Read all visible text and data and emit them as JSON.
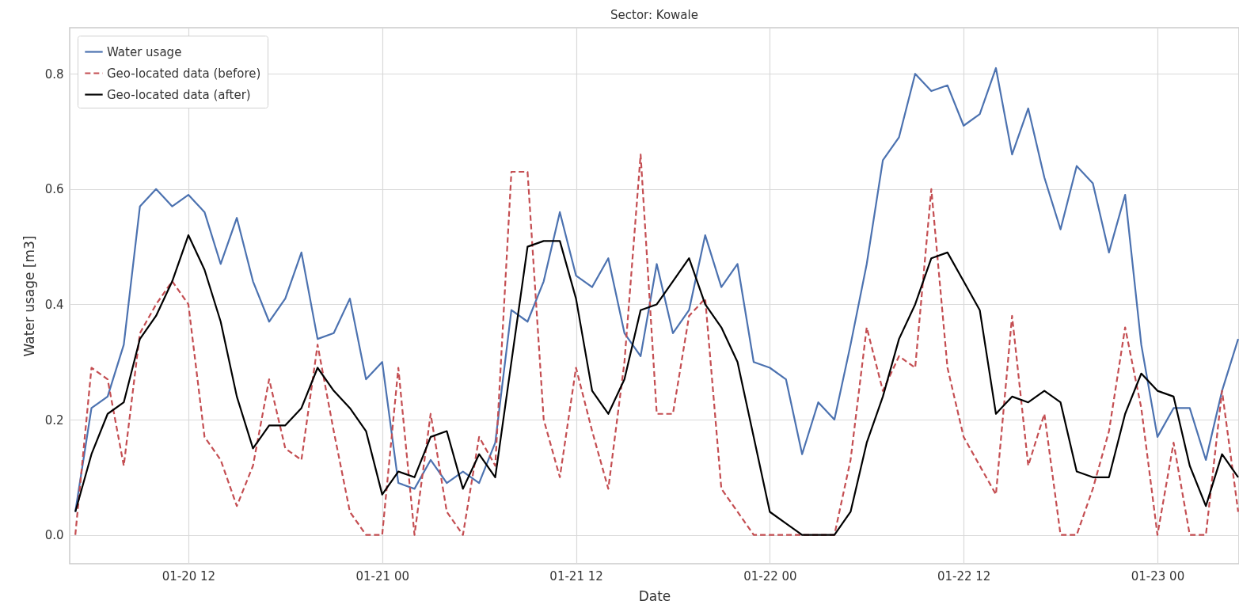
{
  "chart_data": {
    "type": "line",
    "title": "Sector: Kowale",
    "xlabel": "Date",
    "ylabel": "Water usage [m3]",
    "x": [
      "--01-20T05:00",
      "--01-20T06:00",
      "--01-20T07:00",
      "--01-20T08:00",
      "--01-20T09:00",
      "--01-20T10:00",
      "--01-20T11:00",
      "--01-20T12:00",
      "--01-20T13:00",
      "--01-20T14:00",
      "--01-20T15:00",
      "--01-20T16:00",
      "--01-20T17:00",
      "--01-20T18:00",
      "--01-20T19:00",
      "--01-20T20:00",
      "--01-20T21:00",
      "--01-20T22:00",
      "--01-20T23:00",
      "--01-21T00:00",
      "--01-21T01:00",
      "--01-21T02:00",
      "--01-21T03:00",
      "--01-21T04:00",
      "--01-21T05:00",
      "--01-21T06:00",
      "--01-21T07:00",
      "--01-21T08:00",
      "--01-21T09:00",
      "--01-21T10:00",
      "--01-21T11:00",
      "--01-21T12:00",
      "--01-21T13:00",
      "--01-21T14:00",
      "--01-21T15:00",
      "--01-21T16:00",
      "--01-21T17:00",
      "--01-21T18:00",
      "--01-21T19:00",
      "--01-21T20:00",
      "--01-21T21:00",
      "--01-21T22:00",
      "--01-21T23:00",
      "--01-22T00:00",
      "--01-22T01:00",
      "--01-22T02:00",
      "--01-22T03:00",
      "--01-22T04:00",
      "--01-22T05:00",
      "--01-22T06:00",
      "--01-22T07:00",
      "--01-22T08:00",
      "--01-22T09:00",
      "--01-22T10:00",
      "--01-22T11:00",
      "--01-22T12:00",
      "--01-22T13:00",
      "--01-22T14:00",
      "--01-22T15:00",
      "--01-22T16:00",
      "--01-22T17:00",
      "--01-22T18:00",
      "--01-22T19:00",
      "--01-22T20:00",
      "--01-22T21:00",
      "--01-22T22:00",
      "--01-22T23:00",
      "--01-23T00:00",
      "--01-23T01:00",
      "--01-23T02:00",
      "--01-23T03:00",
      "--01-23T04:00",
      "--01-23T05:00"
    ],
    "series": [
      {
        "name": "Water usage",
        "color": "#4c72b0",
        "line_style": "solid",
        "values": [
          0.04,
          0.22,
          0.24,
          0.33,
          0.57,
          0.6,
          0.57,
          0.59,
          0.56,
          0.47,
          0.55,
          0.44,
          0.37,
          0.41,
          0.49,
          0.34,
          0.35,
          0.41,
          0.27,
          0.3,
          0.09,
          0.08,
          0.13,
          0.09,
          0.11,
          0.09,
          0.16,
          0.39,
          0.37,
          0.44,
          0.56,
          0.45,
          0.43,
          0.48,
          0.35,
          0.31,
          0.47,
          0.35,
          0.39,
          0.52,
          0.43,
          0.47,
          0.3,
          0.29,
          0.27,
          0.14,
          0.23,
          0.2,
          0.33,
          0.47,
          0.65,
          0.69,
          0.8,
          0.77,
          0.78,
          0.71,
          0.73,
          0.81,
          0.66,
          0.74,
          0.62,
          0.53,
          0.64,
          0.61,
          0.49,
          0.59,
          0.33,
          0.17,
          0.22,
          0.22,
          0.13,
          0.25,
          0.34
        ]
      },
      {
        "name": "Geo-located data (before)",
        "color": "#c44e52",
        "line_style": "dashed",
        "values": [
          0,
          0.29,
          0.27,
          0.12,
          0.35,
          0.4,
          0.44,
          0.4,
          0.17,
          0.13,
          0.05,
          0.12,
          0.27,
          0.15,
          0.13,
          0.33,
          0.18,
          0.04,
          0,
          0,
          0.29,
          0,
          0.21,
          0.04,
          0,
          0.17,
          0.12,
          0.63,
          0.63,
          0.2,
          0.1,
          0.29,
          0.18,
          0.08,
          0.3,
          0.66,
          0.21,
          0.21,
          0.38,
          0.41,
          0.08,
          0.04,
          0,
          0,
          0,
          0,
          0,
          0,
          0.13,
          0.36,
          0.25,
          0.31,
          0.29,
          0.6,
          0.29,
          0.17,
          0.12,
          0.07,
          0.38,
          0.12,
          0.21,
          0,
          0,
          0.08,
          0.18,
          0.36,
          0.22,
          0,
          0.16,
          0,
          0,
          0.25,
          0.04
        ]
      },
      {
        "name": "Geo-located data (after)",
        "color": "#000000",
        "line_style": "solid",
        "values": [
          0.04,
          0.14,
          0.21,
          0.23,
          0.34,
          0.38,
          0.44,
          0.52,
          0.46,
          0.37,
          0.24,
          0.15,
          0.19,
          0.19,
          0.22,
          0.29,
          0.25,
          0.22,
          0.18,
          0.07,
          0.11,
          0.1,
          0.17,
          0.18,
          0.08,
          0.14,
          0.1,
          0.3,
          0.5,
          0.51,
          0.51,
          0.41,
          0.25,
          0.21,
          0.27,
          0.39,
          0.4,
          0.44,
          0.48,
          0.4,
          0.36,
          0.3,
          0.17,
          0.04,
          0.02,
          0,
          0,
          0,
          0.04,
          0.16,
          0.24,
          0.34,
          0.4,
          0.48,
          0.49,
          0.44,
          0.39,
          0.21,
          0.24,
          0.23,
          0.25,
          0.23,
          0.11,
          0.1,
          0.1,
          0.21,
          0.28,
          0.25,
          0.24,
          0.12,
          0.05,
          0.14,
          0.1
        ]
      }
    ],
    "xlim": [
      "--01-20T04:39",
      "--01-23T05:03"
    ],
    "xticks": [
      {
        "value": "--01-20T12:00",
        "label": "01-20 12"
      },
      {
        "value": "--01-21T00:00",
        "label": "01-21 00"
      },
      {
        "value": "--01-21T12:00",
        "label": "01-21 12"
      },
      {
        "value": "--01-22T00:00",
        "label": "01-22 00"
      },
      {
        "value": "--01-22T12:00",
        "label": "01-22 12"
      },
      {
        "value": "--01-23T00:00",
        "label": "01-23 00"
      }
    ],
    "ylim": [
      -0.05,
      0.88
    ],
    "yticks": [
      {
        "value": 0,
        "label": "0.0"
      },
      0.2,
      0.4,
      0.6,
      0.8
    ],
    "grid": true,
    "legend": "top left",
    "marker": "none"
  }
}
